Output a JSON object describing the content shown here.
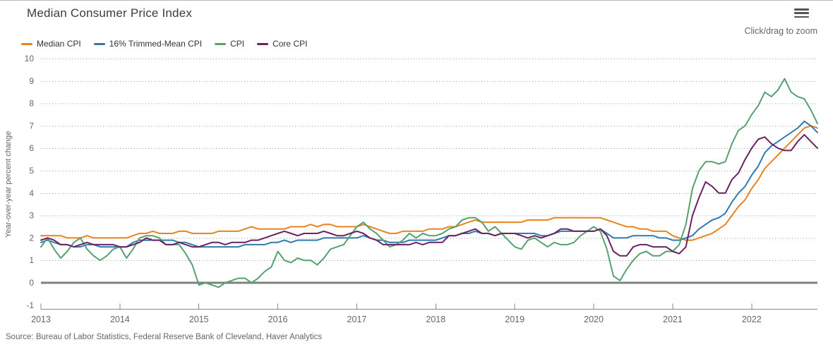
{
  "header": {
    "title": "Median Consumer Price Index",
    "zoom_hint": "Click/drag to zoom"
  },
  "footer": {
    "source": "Source: Bureau of Labor Statistics, Federal Reserve Bank of Cleveland, Haver Analytics"
  },
  "chart_data": {
    "type": "line",
    "title": "Median Consumer Price Index",
    "xlabel": "",
    "ylabel": "Year-over-year percent change",
    "ylim": [
      -1,
      10
    ],
    "y_tick_step": 1,
    "grid": "horizontal dotted, solid gray line at 0",
    "legend_position": "top-left",
    "frequency": "monthly",
    "x_start": "2013-01",
    "x_end": "2022-11",
    "x_tick_labels": [
      "2013",
      "2014",
      "2015",
      "2016",
      "2017",
      "2018",
      "2019",
      "2020",
      "2021",
      "2022"
    ],
    "grid_color": "#9a9a9a",
    "zero_line_color": "#808080",
    "axis_color": "#888888",
    "tick_text_color": "#666666",
    "series": [
      {
        "name": "Median CPI",
        "color": "#e8841d",
        "values": [
          2.1,
          2.1,
          2.1,
          2.1,
          2.0,
          2.0,
          2.0,
          2.1,
          2.0,
          2.0,
          2.0,
          2.0,
          2.0,
          2.0,
          2.1,
          2.2,
          2.2,
          2.3,
          2.2,
          2.2,
          2.2,
          2.3,
          2.3,
          2.2,
          2.2,
          2.2,
          2.2,
          2.3,
          2.3,
          2.3,
          2.3,
          2.4,
          2.5,
          2.4,
          2.4,
          2.4,
          2.4,
          2.4,
          2.5,
          2.5,
          2.5,
          2.6,
          2.5,
          2.6,
          2.6,
          2.5,
          2.5,
          2.5,
          2.5,
          2.6,
          2.5,
          2.4,
          2.3,
          2.2,
          2.2,
          2.3,
          2.3,
          2.3,
          2.3,
          2.4,
          2.4,
          2.4,
          2.5,
          2.5,
          2.6,
          2.7,
          2.8,
          2.7,
          2.7,
          2.7,
          2.7,
          2.7,
          2.7,
          2.7,
          2.8,
          2.8,
          2.8,
          2.8,
          2.9,
          2.9,
          2.9,
          2.9,
          2.9,
          2.9,
          2.9,
          2.9,
          2.8,
          2.7,
          2.6,
          2.5,
          2.5,
          2.4,
          2.4,
          2.3,
          2.3,
          2.3,
          2.1,
          2.0,
          1.9,
          1.9,
          2.0,
          2.1,
          2.2,
          2.4,
          2.6,
          3.0,
          3.4,
          3.7,
          4.2,
          4.6,
          5.1,
          5.4,
          5.7,
          6.0,
          6.3,
          6.6,
          6.9,
          7.0,
          6.9
        ]
      },
      {
        "name": "16% Trimmed-Mean CPI",
        "color": "#2f7ab0",
        "values": [
          1.8,
          1.9,
          1.8,
          1.7,
          1.7,
          1.6,
          1.6,
          1.7,
          1.7,
          1.6,
          1.6,
          1.6,
          1.6,
          1.6,
          1.8,
          1.9,
          1.9,
          1.9,
          1.9,
          1.9,
          1.9,
          1.8,
          1.8,
          1.7,
          1.6,
          1.6,
          1.6,
          1.6,
          1.6,
          1.6,
          1.6,
          1.7,
          1.7,
          1.7,
          1.7,
          1.8,
          1.8,
          1.9,
          1.8,
          1.9,
          1.9,
          1.9,
          1.9,
          2.0,
          2.0,
          2.0,
          2.0,
          2.0,
          2.0,
          2.1,
          2.0,
          1.9,
          1.9,
          1.8,
          1.8,
          1.8,
          1.9,
          1.9,
          1.9,
          1.9,
          1.9,
          2.0,
          2.1,
          2.1,
          2.2,
          2.2,
          2.3,
          2.2,
          2.2,
          2.1,
          2.2,
          2.2,
          2.2,
          2.2,
          2.2,
          2.2,
          2.1,
          2.1,
          2.2,
          2.3,
          2.3,
          2.3,
          2.3,
          2.3,
          2.3,
          2.4,
          2.2,
          2.0,
          2.0,
          2.0,
          2.1,
          2.1,
          2.1,
          2.1,
          2.0,
          2.0,
          1.9,
          1.9,
          2.0,
          2.1,
          2.4,
          2.6,
          2.8,
          2.9,
          3.1,
          3.6,
          4.0,
          4.3,
          4.8,
          5.2,
          5.8,
          6.1,
          6.3,
          6.5,
          6.7,
          6.9,
          7.2,
          7.0,
          6.7
        ]
      },
      {
        "name": "CPI",
        "color": "#56a170",
        "values": [
          1.6,
          2.0,
          1.5,
          1.1,
          1.4,
          1.8,
          2.0,
          1.5,
          1.2,
          1.0,
          1.2,
          1.5,
          1.6,
          1.1,
          1.5,
          2.0,
          2.1,
          2.1,
          2.0,
          1.7,
          1.7,
          1.7,
          1.3,
          0.8,
          -0.1,
          0.0,
          -0.1,
          -0.2,
          0.0,
          0.1,
          0.2,
          0.2,
          0.0,
          0.2,
          0.5,
          0.7,
          1.4,
          1.0,
          0.9,
          1.1,
          1.0,
          1.0,
          0.8,
          1.1,
          1.5,
          1.6,
          1.7,
          2.1,
          2.5,
          2.7,
          2.4,
          2.2,
          1.9,
          1.6,
          1.7,
          1.9,
          2.2,
          2.0,
          2.2,
          2.1,
          2.1,
          2.2,
          2.4,
          2.5,
          2.8,
          2.9,
          2.9,
          2.7,
          2.3,
          2.5,
          2.2,
          1.9,
          1.6,
          1.5,
          1.9,
          2.0,
          1.8,
          1.6,
          1.8,
          1.7,
          1.7,
          1.8,
          2.1,
          2.3,
          2.5,
          2.3,
          1.5,
          0.3,
          0.1,
          0.6,
          1.0,
          1.3,
          1.4,
          1.2,
          1.2,
          1.4,
          1.4,
          1.7,
          2.6,
          4.2,
          5.0,
          5.4,
          5.4,
          5.3,
          5.4,
          6.2,
          6.8,
          7.0,
          7.5,
          7.9,
          8.5,
          8.3,
          8.6,
          9.1,
          8.5,
          8.3,
          8.2,
          7.7,
          7.1
        ]
      },
      {
        "name": "Core CPI",
        "color": "#6a2262",
        "values": [
          1.9,
          2.0,
          1.9,
          1.7,
          1.7,
          1.6,
          1.7,
          1.8,
          1.7,
          1.7,
          1.7,
          1.7,
          1.6,
          1.6,
          1.7,
          1.8,
          2.0,
          1.9,
          1.9,
          1.7,
          1.7,
          1.8,
          1.7,
          1.6,
          1.6,
          1.7,
          1.8,
          1.8,
          1.7,
          1.8,
          1.8,
          1.8,
          1.9,
          1.9,
          2.0,
          2.1,
          2.2,
          2.3,
          2.2,
          2.1,
          2.2,
          2.2,
          2.2,
          2.3,
          2.2,
          2.1,
          2.1,
          2.2,
          2.3,
          2.2,
          2.0,
          1.9,
          1.7,
          1.7,
          1.7,
          1.7,
          1.7,
          1.8,
          1.7,
          1.8,
          1.8,
          1.8,
          2.1,
          2.1,
          2.2,
          2.3,
          2.4,
          2.2,
          2.2,
          2.1,
          2.2,
          2.2,
          2.2,
          2.1,
          2.0,
          2.1,
          2.0,
          2.1,
          2.2,
          2.4,
          2.4,
          2.3,
          2.3,
          2.3,
          2.3,
          2.4,
          2.1,
          1.4,
          1.2,
          1.2,
          1.6,
          1.7,
          1.7,
          1.6,
          1.6,
          1.6,
          1.4,
          1.3,
          1.6,
          3.0,
          3.8,
          4.5,
          4.3,
          4.0,
          4.0,
          4.6,
          4.9,
          5.5,
          6.0,
          6.4,
          6.5,
          6.2,
          6.0,
          5.9,
          5.9,
          6.3,
          6.6,
          6.3,
          6.0
        ]
      }
    ]
  }
}
